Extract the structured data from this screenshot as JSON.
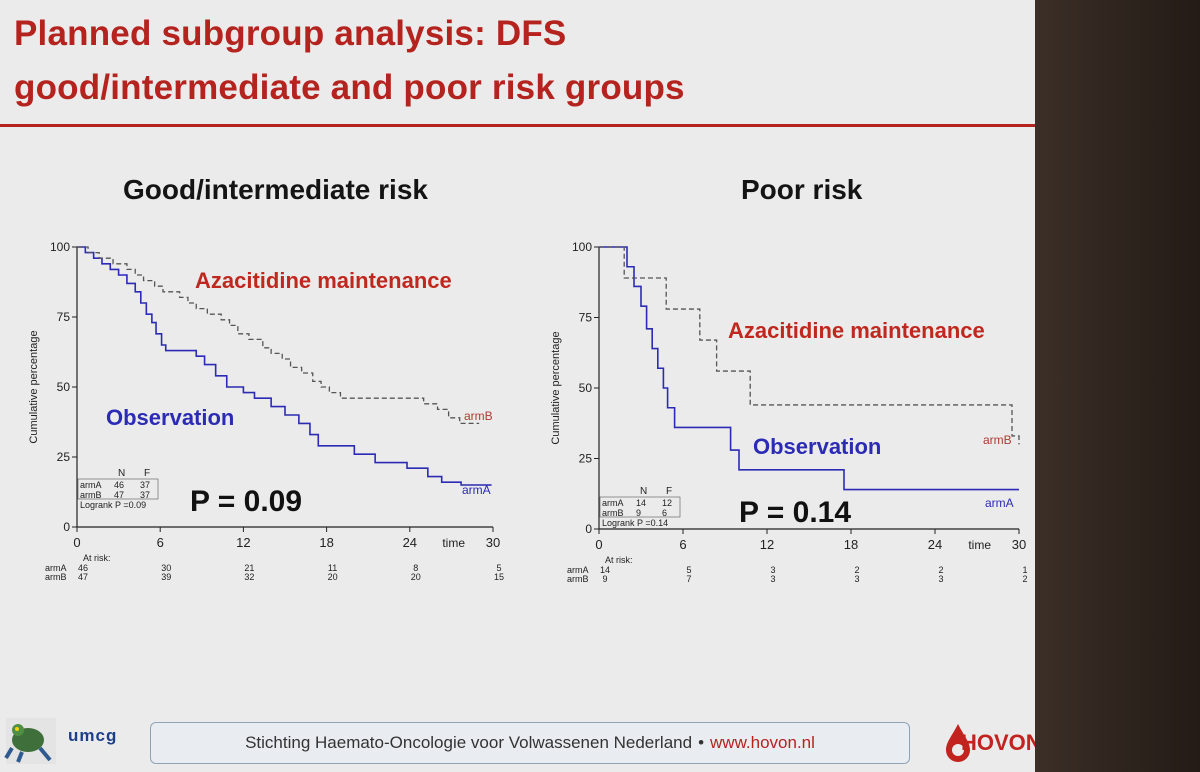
{
  "slide": {
    "title_line1": "Planned subgroup analysis: DFS",
    "title_line2": "good/intermediate and poor risk groups",
    "footer": {
      "text": "Stichting Haemato-Oncologie voor Volwassenen Nederland",
      "separator": "•",
      "url": "www.hovon.nl"
    },
    "logo_left": "umcg",
    "logo_right": "HOVON",
    "colors": {
      "title": "#b5231f",
      "observation": "#2b2bb5",
      "azacitidine_label": "#c0281f",
      "armB_line": "#555555"
    }
  },
  "chart_data": [
    {
      "type": "line",
      "title": "Good/intermediate risk",
      "xlabel": "time",
      "ylabel": "Cumulative percentage",
      "xlim": [
        0,
        30
      ],
      "ylim": [
        0,
        100
      ],
      "x_ticks": [
        "0",
        "6",
        "12",
        "18",
        "24",
        "30"
      ],
      "y_ticks": [
        "0",
        "25",
        "50",
        "75",
        "100"
      ],
      "annotation_azacitidine": "Azacitidine maintenance",
      "annotation_observation": "Observation",
      "p_value": "P = 0.09",
      "table": {
        "header": [
          "",
          "N",
          "F"
        ],
        "rows": [
          [
            "armA",
            "46",
            "37"
          ],
          [
            "armB",
            "47",
            "37"
          ]
        ],
        "logrank": "Logrank P =0.09"
      },
      "at_risk": {
        "label": "At risk:",
        "times": [
          0,
          6,
          12,
          18,
          24,
          30
        ],
        "rows": [
          {
            "name": "armA",
            "values": [
              "46",
              "30",
              "21",
              "11",
              "8",
              "5"
            ]
          },
          {
            "name": "armB",
            "values": [
              "47",
              "39",
              "32",
              "20",
              "20",
              "15"
            ]
          }
        ]
      },
      "series": [
        {
          "name": "armA",
          "style": "solid",
          "color": "#2b2bb5",
          "points": [
            [
              0,
              100
            ],
            [
              0.6,
              98
            ],
            [
              1.2,
              96
            ],
            [
              1.8,
              94
            ],
            [
              2.4,
              92
            ],
            [
              3,
              90
            ],
            [
              3.6,
              87
            ],
            [
              4.2,
              84
            ],
            [
              4.6,
              80
            ],
            [
              5,
              76
            ],
            [
              5.4,
              73
            ],
            [
              5.7,
              69
            ],
            [
              6.1,
              65
            ],
            [
              6.4,
              63
            ],
            [
              8.6,
              61
            ],
            [
              9.2,
              58
            ],
            [
              10,
              54
            ],
            [
              10.8,
              50
            ],
            [
              12,
              48
            ],
            [
              12.8,
              46
            ],
            [
              14,
              43
            ],
            [
              15,
              40
            ],
            [
              16,
              37
            ],
            [
              16.8,
              33
            ],
            [
              17.4,
              29
            ],
            [
              20,
              26
            ],
            [
              21.5,
              23
            ],
            [
              23.8,
              21
            ],
            [
              25.3,
              18
            ],
            [
              26.3,
              16
            ],
            [
              27.7,
              15
            ],
            [
              29.9,
              15
            ]
          ]
        },
        {
          "name": "armB",
          "style": "dashed",
          "color": "#555555",
          "points": [
            [
              0,
              100
            ],
            [
              0.8,
              98
            ],
            [
              1.6,
              96
            ],
            [
              2.6,
              94
            ],
            [
              3.6,
              92
            ],
            [
              4.2,
              90
            ],
            [
              4.8,
              88
            ],
            [
              5.6,
              86
            ],
            [
              6.2,
              84
            ],
            [
              7.4,
              82
            ],
            [
              8,
              80
            ],
            [
              8.6,
              78
            ],
            [
              9.4,
              76
            ],
            [
              10.4,
              74
            ],
            [
              11,
              72
            ],
            [
              11.6,
              69
            ],
            [
              12.4,
              67
            ],
            [
              13.4,
              64
            ],
            [
              14,
              62
            ],
            [
              14.8,
              60
            ],
            [
              15.4,
              57
            ],
            [
              16.2,
              55
            ],
            [
              17,
              52
            ],
            [
              17.6,
              50
            ],
            [
              18.2,
              48
            ],
            [
              19,
              46
            ],
            [
              25,
              44
            ],
            [
              26,
              42
            ],
            [
              26.8,
              39
            ],
            [
              27.6,
              37
            ],
            [
              29,
              37
            ]
          ]
        }
      ],
      "series_labels": [
        "armA",
        "armB"
      ]
    },
    {
      "type": "line",
      "title": "Poor risk",
      "xlabel": "time",
      "ylabel": "Cumulative percentage",
      "xlim": [
        0,
        30
      ],
      "ylim": [
        0,
        100
      ],
      "x_ticks": [
        "0",
        "6",
        "12",
        "18",
        "24",
        "30"
      ],
      "y_ticks": [
        "0",
        "25",
        "50",
        "75",
        "100"
      ],
      "annotation_azacitidine": "Azacitidine maintenance",
      "annotation_observation": "Observation",
      "p_value": "P = 0.14",
      "table": {
        "header": [
          "",
          "N",
          "F"
        ],
        "rows": [
          [
            "armA",
            "14",
            "12"
          ],
          [
            "armB",
            "9",
            "6"
          ]
        ],
        "logrank": "Logrank P =0.14"
      },
      "at_risk": {
        "label": "At risk:",
        "times": [
          0,
          6,
          12,
          18,
          24,
          30
        ],
        "rows": [
          {
            "name": "armA",
            "values": [
              "14",
              "5",
              "3",
              "2",
              "2",
              "1"
            ]
          },
          {
            "name": "armB",
            "values": [
              "9",
              "7",
              "3",
              "3",
              "3",
              "2"
            ]
          }
        ]
      },
      "series": [
        {
          "name": "armA",
          "style": "solid",
          "color": "#2b2bb5",
          "points": [
            [
              0,
              100
            ],
            [
              2,
              93
            ],
            [
              2.5,
              86
            ],
            [
              3,
              79
            ],
            [
              3.4,
              71
            ],
            [
              3.8,
              64
            ],
            [
              4.2,
              57
            ],
            [
              4.6,
              50
            ],
            [
              4.9,
              43
            ],
            [
              5.4,
              36
            ],
            [
              9.4,
              28
            ],
            [
              10,
              21
            ],
            [
              17.5,
              14
            ],
            [
              30,
              14
            ]
          ]
        },
        {
          "name": "armB",
          "style": "dashed",
          "color": "#555555",
          "points": [
            [
              0,
              100
            ],
            [
              1.8,
              89
            ],
            [
              4.8,
              78
            ],
            [
              7.2,
              67
            ],
            [
              8.4,
              56
            ],
            [
              10.8,
              44
            ],
            [
              29.5,
              33
            ],
            [
              30,
              30
            ]
          ]
        }
      ],
      "series_labels": [
        "armA",
        "armB"
      ]
    }
  ]
}
